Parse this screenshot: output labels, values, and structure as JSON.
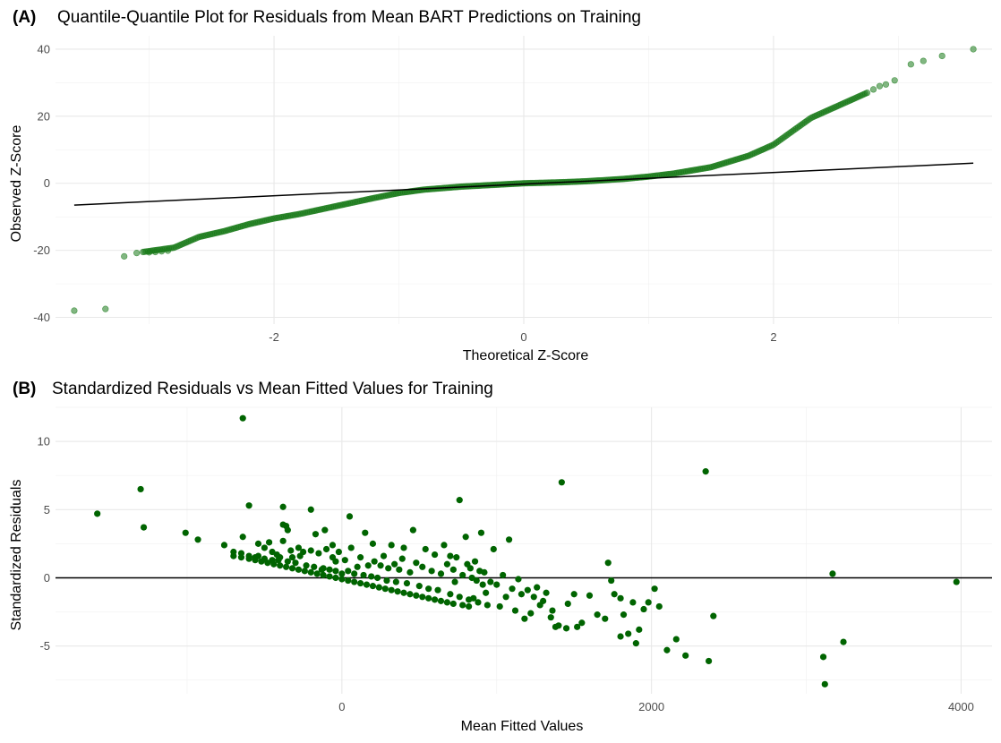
{
  "chart_data": [
    {
      "type": "scatter",
      "panel_label": "(A)",
      "title": "Quantile-Quantile Plot for Residuals from Mean BART Predictions on Training",
      "xlabel": "Theoretical Z-Score",
      "ylabel": "Observed Z-Score",
      "xlim": [
        -3.75,
        3.75
      ],
      "ylim": [
        -42,
        44
      ],
      "xticks": [
        -2,
        0,
        2
      ],
      "yticks": [
        -40,
        -20,
        0,
        20,
        40
      ],
      "grid": true,
      "point_color": "#1a7a1a",
      "point_opacity": 0.55,
      "reference_line": {
        "x1": -3.6,
        "y1": -6.5,
        "x2": 3.6,
        "y2": 6.0,
        "color": "#000000"
      },
      "curve_knots": [
        [
          -3.05,
          -20.5
        ],
        [
          -2.8,
          -19.2
        ],
        [
          -2.6,
          -16.0
        ],
        [
          -2.4,
          -14.3
        ],
        [
          -2.2,
          -12.2
        ],
        [
          -2.0,
          -10.5
        ],
        [
          -1.8,
          -9.2
        ],
        [
          -1.5,
          -6.8
        ],
        [
          -1.2,
          -4.4
        ],
        [
          -1.0,
          -2.9
        ],
        [
          -0.8,
          -1.9
        ],
        [
          -0.5,
          -1.0
        ],
        [
          -0.3,
          -0.6
        ],
        [
          0.0,
          0.0
        ],
        [
          0.3,
          0.3
        ],
        [
          0.5,
          0.6
        ],
        [
          0.8,
          1.3
        ],
        [
          1.0,
          2.0
        ],
        [
          1.2,
          2.9
        ],
        [
          1.5,
          4.8
        ],
        [
          1.8,
          8.2
        ],
        [
          2.0,
          11.5
        ],
        [
          2.15,
          15.5
        ],
        [
          2.3,
          19.5
        ],
        [
          2.45,
          22.0
        ],
        [
          2.6,
          24.5
        ],
        [
          2.75,
          27.0
        ]
      ],
      "tail_points": [
        [
          -3.6,
          -38.0
        ],
        [
          -3.35,
          -37.5
        ],
        [
          -3.2,
          -21.8
        ],
        [
          -3.1,
          -20.8
        ],
        [
          -3.0,
          -20.6
        ],
        [
          -2.95,
          -20.5
        ],
        [
          -2.9,
          -20.3
        ],
        [
          -2.85,
          -20.1
        ],
        [
          2.8,
          28.0
        ],
        [
          2.85,
          29.0
        ],
        [
          2.9,
          29.5
        ],
        [
          2.97,
          30.7
        ],
        [
          3.1,
          35.5
        ],
        [
          3.2,
          36.5
        ],
        [
          3.35,
          38.0
        ],
        [
          3.6,
          40.0
        ]
      ]
    },
    {
      "type": "scatter",
      "panel_label": "(B)",
      "title": "Standardized Residuals vs Mean Fitted Values for Training",
      "xlabel": "Mean Fitted Values",
      "ylabel": "Standardized Residuals",
      "xlim": [
        -1850,
        4200
      ],
      "ylim": [
        -8.5,
        12.5
      ],
      "xticks": [
        0,
        2000,
        4000
      ],
      "yticks": [
        -5,
        0,
        5,
        10
      ],
      "grid": true,
      "point_color": "#006400",
      "hline": 0,
      "points": [
        [
          -1580,
          4.7
        ],
        [
          -1300,
          6.5
        ],
        [
          -1280,
          3.7
        ],
        [
          -1010,
          3.3
        ],
        [
          -930,
          2.8
        ],
        [
          -760,
          2.4
        ],
        [
          -700,
          1.9
        ],
        [
          -650,
          1.8
        ],
        [
          -640,
          11.7
        ],
        [
          -600,
          5.3
        ],
        [
          -640,
          3.0
        ],
        [
          -600,
          1.6
        ],
        [
          -560,
          1.5
        ],
        [
          -540,
          2.5
        ],
        [
          -500,
          1.4
        ],
        [
          -470,
          2.6
        ],
        [
          -450,
          1.3
        ],
        [
          -420,
          1.7
        ],
        [
          -400,
          1.5
        ],
        [
          -380,
          3.9
        ],
        [
          -360,
          3.8
        ],
        [
          -350,
          1.2
        ],
        [
          -330,
          2.0
        ],
        [
          -300,
          1.1
        ],
        [
          -280,
          2.2
        ],
        [
          -380,
          2.7
        ],
        [
          -450,
          1.9
        ],
        [
          -500,
          2.2
        ],
        [
          -540,
          1.6
        ],
        [
          -410,
          1.3
        ],
        [
          -380,
          5.2
        ],
        [
          -350,
          3.5
        ],
        [
          -320,
          1.5
        ],
        [
          -270,
          1.6
        ],
        [
          -250,
          1.9
        ],
        [
          -230,
          0.9
        ],
        [
          -200,
          2.0
        ],
        [
          -180,
          0.8
        ],
        [
          -150,
          1.8
        ],
        [
          -120,
          0.7
        ],
        [
          -100,
          2.1
        ],
        [
          -80,
          0.6
        ],
        [
          -60,
          1.5
        ],
        [
          -40,
          0.5
        ],
        [
          -20,
          1.9
        ],
        [
          -200,
          5.0
        ],
        [
          -170,
          3.2
        ],
        [
          -130,
          0.6
        ],
        [
          -110,
          3.5
        ],
        [
          -60,
          2.4
        ],
        [
          -40,
          1.2
        ],
        [
          0,
          0.3
        ],
        [
          20,
          1.3
        ],
        [
          40,
          0.5
        ],
        [
          60,
          2.2
        ],
        [
          50,
          4.5
        ],
        [
          80,
          0.3
        ],
        [
          100,
          0.8
        ],
        [
          120,
          1.5
        ],
        [
          140,
          0.2
        ],
        [
          150,
          3.3
        ],
        [
          170,
          0.9
        ],
        [
          190,
          0.1
        ],
        [
          200,
          2.5
        ],
        [
          210,
          1.2
        ],
        [
          230,
          0.0
        ],
        [
          250,
          0.9
        ],
        [
          270,
          1.6
        ],
        [
          290,
          -0.2
        ],
        [
          300,
          0.7
        ],
        [
          320,
          2.4
        ],
        [
          340,
          1.0
        ],
        [
          350,
          -0.3
        ],
        [
          370,
          0.6
        ],
        [
          390,
          1.4
        ],
        [
          400,
          2.2
        ],
        [
          420,
          -0.4
        ],
        [
          440,
          0.4
        ],
        [
          460,
          3.5
        ],
        [
          480,
          1.1
        ],
        [
          500,
          -0.6
        ],
        [
          520,
          0.8
        ],
        [
          540,
          2.1
        ],
        [
          560,
          -0.8
        ],
        [
          580,
          0.5
        ],
        [
          600,
          1.7
        ],
        [
          620,
          -0.9
        ],
        [
          640,
          0.3
        ],
        [
          660,
          2.4
        ],
        [
          680,
          1.0
        ],
        [
          700,
          -1.2
        ],
        [
          720,
          0.6
        ],
        [
          740,
          1.5
        ],
        [
          760,
          -1.4
        ],
        [
          780,
          0.2
        ],
        [
          800,
          3.0
        ],
        [
          820,
          -1.6
        ],
        [
          840,
          0.0
        ],
        [
          860,
          1.2
        ],
        [
          880,
          -1.8
        ],
        [
          900,
          3.3
        ],
        [
          920,
          0.4
        ],
        [
          940,
          -2.0
        ],
        [
          960,
          -0.3
        ],
        [
          980,
          2.1
        ],
        [
          1000,
          -0.5
        ],
        [
          1020,
          -2.1
        ],
        [
          1040,
          0.2
        ],
        [
          1060,
          -1.4
        ],
        [
          1080,
          2.8
        ],
        [
          1100,
          -0.8
        ],
        [
          1120,
          -2.4
        ],
        [
          1140,
          -0.1
        ],
        [
          1160,
          -1.2
        ],
        [
          1180,
          -3.0
        ],
        [
          760,
          5.7
        ],
        [
          700,
          1.6
        ],
        [
          730,
          -0.3
        ],
        [
          810,
          1.0
        ],
        [
          830,
          0.7
        ],
        [
          850,
          -1.5
        ],
        [
          870,
          -0.2
        ],
        [
          890,
          0.5
        ],
        [
          910,
          -0.5
        ],
        [
          930,
          -1.1
        ],
        [
          1420,
          7.0
        ],
        [
          1300,
          -1.7
        ],
        [
          1350,
          -2.9
        ],
        [
          1400,
          -3.5
        ],
        [
          1450,
          -3.7
        ],
        [
          1500,
          -1.2
        ],
        [
          1550,
          -3.3
        ],
        [
          1600,
          -1.3
        ],
        [
          1650,
          -2.7
        ],
        [
          1700,
          -3.0
        ],
        [
          1720,
          1.1
        ],
        [
          1740,
          -0.2
        ],
        [
          1760,
          -1.2
        ],
        [
          1800,
          -1.5
        ],
        [
          1820,
          -2.7
        ],
        [
          1850,
          -4.1
        ],
        [
          1880,
          -1.8
        ],
        [
          1920,
          -3.8
        ],
        [
          1950,
          -2.3
        ],
        [
          1980,
          -1.8
        ],
        [
          2020,
          -0.8
        ],
        [
          2050,
          -2.1
        ],
        [
          2100,
          -5.3
        ],
        [
          2160,
          -4.5
        ],
        [
          2220,
          -5.7
        ],
        [
          2350,
          7.8
        ],
        [
          2370,
          -6.1
        ],
        [
          2400,
          -2.8
        ],
        [
          1800,
          -4.3
        ],
        [
          1900,
          -4.8
        ],
        [
          3110,
          -5.8
        ],
        [
          3120,
          -7.8
        ],
        [
          3170,
          0.3
        ],
        [
          3240,
          -4.7
        ],
        [
          3970,
          -0.3
        ],
        [
          1240,
          -1.4
        ],
        [
          1260,
          -0.7
        ],
        [
          1280,
          -2.0
        ],
        [
          1320,
          -1.1
        ],
        [
          1360,
          -2.4
        ],
        [
          1200,
          -0.9
        ],
        [
          1220,
          -2.6
        ],
        [
          1380,
          -3.6
        ],
        [
          1460,
          -1.9
        ],
        [
          1520,
          -3.6
        ],
        [
          -700,
          1.6
        ],
        [
          -650,
          1.5
        ],
        [
          -600,
          1.4
        ],
        [
          -560,
          1.3
        ],
        [
          -520,
          1.2
        ],
        [
          -480,
          1.1
        ],
        [
          -440,
          1.0
        ],
        [
          -400,
          0.9
        ],
        [
          -360,
          0.8
        ],
        [
          -320,
          0.7
        ],
        [
          -280,
          0.6
        ],
        [
          -240,
          0.5
        ],
        [
          -200,
          0.4
        ],
        [
          -160,
          0.3
        ],
        [
          -120,
          0.2
        ],
        [
          -80,
          0.1
        ],
        [
          -40,
          0.0
        ],
        [
          0,
          -0.1
        ],
        [
          40,
          -0.2
        ],
        [
          80,
          -0.3
        ],
        [
          120,
          -0.4
        ],
        [
          160,
          -0.5
        ],
        [
          200,
          -0.6
        ],
        [
          240,
          -0.7
        ],
        [
          280,
          -0.8
        ],
        [
          320,
          -0.9
        ],
        [
          360,
          -1.0
        ],
        [
          400,
          -1.1
        ],
        [
          440,
          -1.2
        ],
        [
          480,
          -1.3
        ],
        [
          520,
          -1.4
        ],
        [
          560,
          -1.5
        ],
        [
          600,
          -1.6
        ],
        [
          640,
          -1.7
        ],
        [
          680,
          -1.8
        ],
        [
          720,
          -1.9
        ],
        [
          780,
          -2.0
        ],
        [
          820,
          -2.1
        ]
      ]
    }
  ]
}
